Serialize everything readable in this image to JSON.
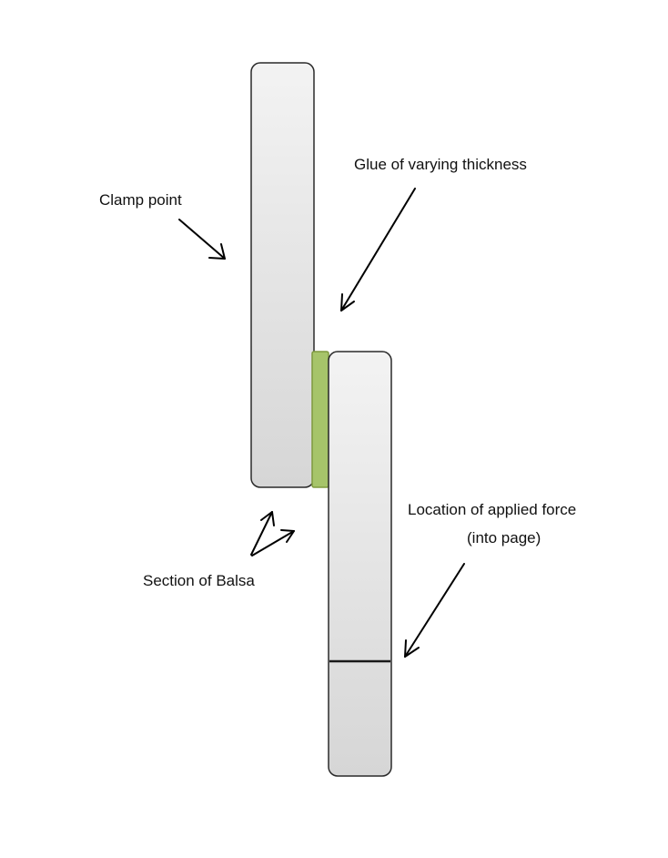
{
  "labels": {
    "clamp_point": "Clamp point",
    "glue": "Glue of varying thickness",
    "force_line1": "Location of applied force",
    "force_line2": "(into page)",
    "section": "Section of Balsa"
  },
  "colors": {
    "balsa_fill_light": "#f3f3f3",
    "balsa_fill_dark": "#d6d6d6",
    "balsa_stroke": "#2a2a2a",
    "glue_fill": "#a6c46a",
    "glue_stroke": "#7f9a3e",
    "text": "#111111"
  }
}
